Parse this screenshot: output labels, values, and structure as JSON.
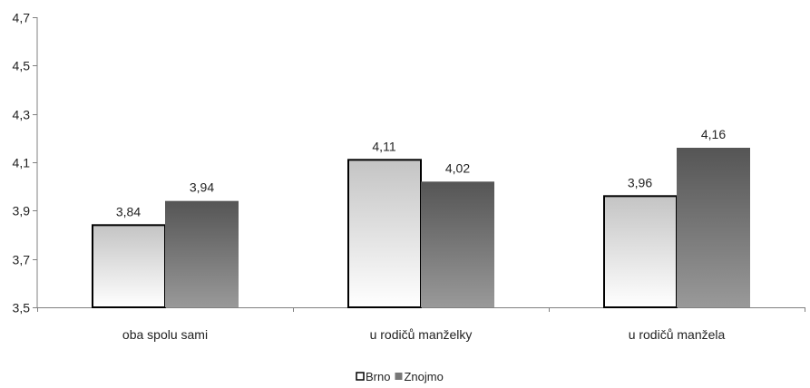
{
  "chart_data": {
    "type": "bar",
    "categories": [
      "oba spolu sami",
      "u rodičů manželky",
      "u rodičů manžela"
    ],
    "series": [
      {
        "name": "Brno",
        "values": [
          3.84,
          4.11,
          3.96
        ],
        "color": "#e6e6e6"
      },
      {
        "name": "Znojmo",
        "values": [
          3.94,
          4.02,
          4.16
        ],
        "color": "#6e6e6e"
      }
    ],
    "value_labels": [
      [
        "3,84",
        "4,11",
        "3,96"
      ],
      [
        "3,94",
        "4,02",
        "4,16"
      ]
    ],
    "ylim": [
      3.5,
      4.7
    ],
    "yticks": [
      3.5,
      3.7,
      3.9,
      4.1,
      4.3,
      4.5,
      4.7
    ],
    "ytick_labels": [
      "3,5",
      "3,7",
      "3,9",
      "4,1",
      "4,3",
      "4,5",
      "4,7"
    ],
    "grid": false,
    "legend_position": "bottom",
    "title": "",
    "xlabel": "",
    "ylabel": ""
  }
}
